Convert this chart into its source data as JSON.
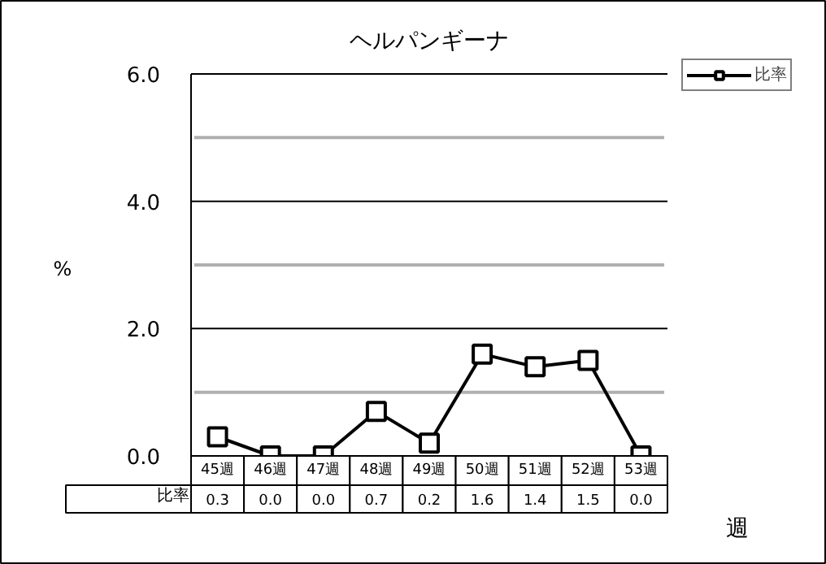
{
  "chart_data": {
    "type": "line",
    "title": "ヘルパンギーナ",
    "ylabel": "%",
    "xlabel": "週",
    "categories": [
      "45週",
      "46週",
      "47週",
      "48週",
      "49週",
      "50週",
      "51週",
      "52週",
      "53週"
    ],
    "series": [
      {
        "name": "比率",
        "color": "#000000",
        "values": [
          0.3,
          0.0,
          0.0,
          0.7,
          0.2,
          1.6,
          1.4,
          1.5,
          0.0
        ],
        "value_labels": [
          "0.3",
          "0.0",
          "0.0",
          "0.7",
          "0.2",
          "1.6",
          "1.4",
          "1.5",
          "0.0"
        ]
      }
    ],
    "ylim": [
      0,
      6
    ],
    "yticks": [
      {
        "value": 0,
        "label": "0.0"
      },
      {
        "value": 1,
        "label": null
      },
      {
        "value": 2,
        "label": "2.0"
      },
      {
        "value": 3,
        "label": null
      },
      {
        "value": 4,
        "label": "4.0"
      },
      {
        "value": 5,
        "label": null
      },
      {
        "value": 6,
        "label": "6.0"
      }
    ],
    "grid": "y",
    "legend": "top right",
    "marker": "square",
    "line_style": "solid"
  }
}
